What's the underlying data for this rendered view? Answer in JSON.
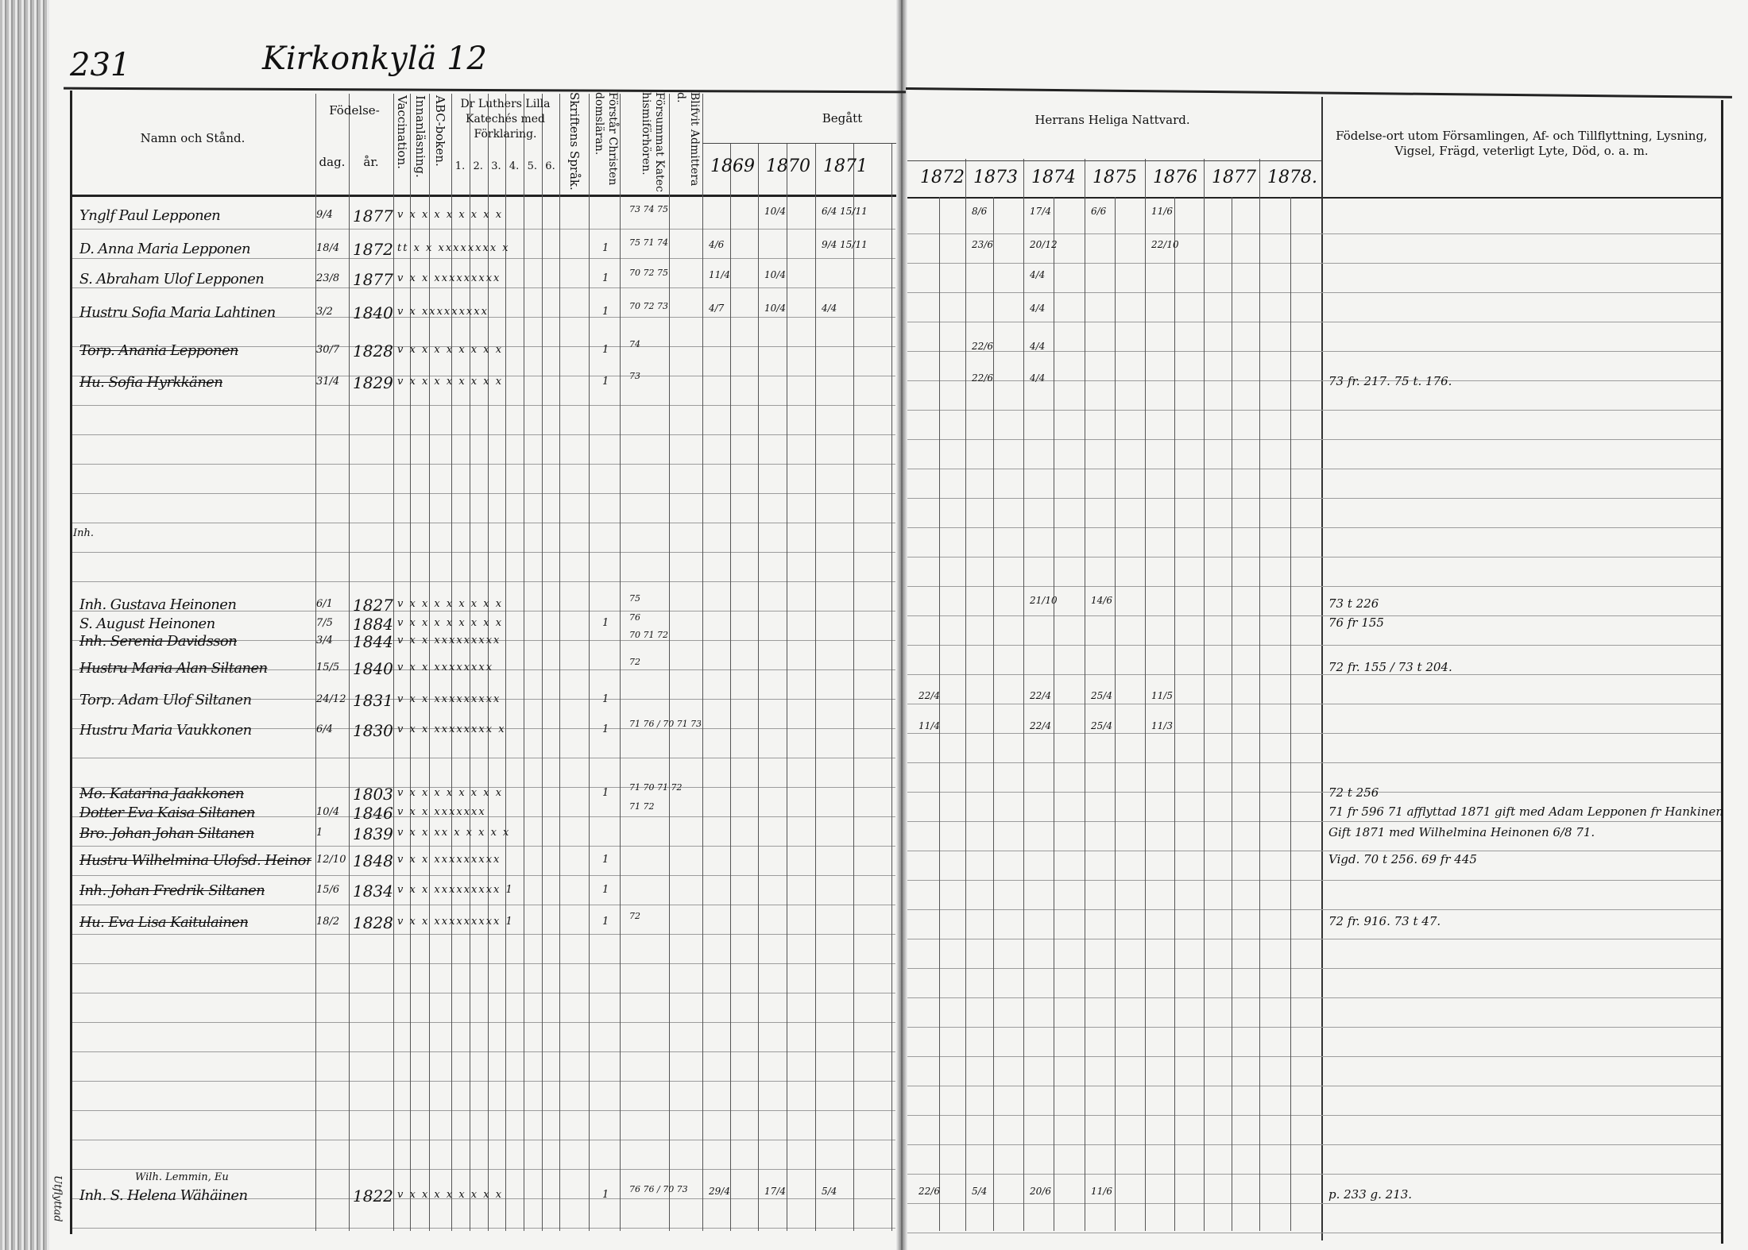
{
  "page_number": "231",
  "village_title": "Kirkonkylä 12",
  "header": {
    "name_col": "Namn och Stånd.",
    "birth": "Födelse-",
    "birth_day": "dag.",
    "birth_year": "år.",
    "vaccination": "Vaccination.",
    "innanlasning": "Innanläsning.",
    "abc": "ABC-boken.",
    "luther": "Dr Luthers Lilla Katechés med Förklaring.",
    "luther_parts": [
      "1.",
      "2.",
      "3.",
      "4.",
      "5.",
      "6."
    ],
    "skriftens": "Skriftens Språk.",
    "forstar": "Förstår Christendomsläran.",
    "forsummat": "Försummat Katechismiförhören.",
    "blifvit": "Blifvit Admitterad.",
    "begatt": "Begått",
    "nattvard": "Herrans Heliga Nattvard.",
    "years": [
      "1869",
      "1870",
      "1871",
      "1872",
      "1873",
      "1874",
      "1875",
      "1876",
      "1877",
      "1878."
    ],
    "notes_col": "Födelse-ort utom Församlingen, Af- och Tillflyttning, Lysning, Vigsel, Frägd, veterligt Lyte, Död, o. a. m."
  },
  "rows": [
    {
      "name": "Ynglf Paul Lepponen",
      "day": "9/4",
      "year": "1877",
      "marks": "v x x x x x x x x",
      "forsummat": "73 74 75",
      "y1870": "10/4",
      "y1871": "6/4 15/11",
      "y1873": "8/6",
      "y1874": "17/4",
      "y1875": "6/6",
      "y1876": "11/6",
      "note": ""
    },
    {
      "name": "D. Anna Maria Lepponen",
      "day": "18/4",
      "year": "1872",
      "marks": "tt x x xxxxxxxx x",
      "blifvit": "1",
      "forsummat": "75 71 74",
      "y1869": "4/6",
      "y1871": "9/4 15/11",
      "y1873": "23/6",
      "y1874": "20/12",
      "y1876": "22/10",
      "note": ""
    },
    {
      "name": "S. Abraham Ulof Lepponen",
      "day": "23/8",
      "year": "1877",
      "marks": "v x x xxxxxxxxx",
      "blifvit": "1",
      "forsummat": "70 72 75",
      "y1869": "11/4",
      "y1870": "10/4",
      "y1874": "4/4",
      "note": ""
    },
    {
      "name": "Hustru Sofia Maria Lahtinen",
      "day": "3/2",
      "year": "1840",
      "marks": "v x xxxxxxxxx",
      "blifvit": "1",
      "forsummat": "70 72 73",
      "y1869": "4/7",
      "y1870": "10/4",
      "y1871": "4/4",
      "y1874": "4/4",
      "note": ""
    },
    {
      "name": "Torp. Anania Lepponen",
      "day": "30/7",
      "year": "1828",
      "marks": "v x x x x x x x x",
      "blifvit": "1",
      "forsummat": "74",
      "y1873": "22/6",
      "y1874": "4/4",
      "note": "",
      "struck": true
    },
    {
      "name": "Hu. Sofia Hyrkkänen",
      "day": "31/4",
      "year": "1829",
      "marks": "v x x x x x x x x",
      "blifvit": "1",
      "forsummat": "73",
      "y1873": "22/6",
      "y1874": "4/4",
      "note": "73 fr. 217. 75 t. 176.",
      "struck": true
    },
    {
      "name": "Inh. Gustava Heinonen",
      "day": "6/1",
      "year": "1827",
      "marks": "v x x x x x x x x",
      "forsummat": "75",
      "y1874": "21/10",
      "y1875": "14/6",
      "note": "73 t 226",
      "struck": false
    },
    {
      "name": "S. August Heinonen",
      "day": "7/5",
      "year": "1884",
      "marks": "v x x x x x x x x",
      "blifvit": "1",
      "forsummat": "76",
      "note": "76 fr 155"
    },
    {
      "name": "Inh. Serenia Davidsson",
      "day": "3/4",
      "year": "1844",
      "marks": "v x x xxxxxxxxx",
      "forsummat": "70 71 72",
      "note": "",
      "struck": true
    },
    {
      "name": "Hustru Maria Alan Siltanen",
      "day": "15/5",
      "year": "1840",
      "marks": "v x x xxxxxxxx",
      "forsummat": "72",
      "note": "72 fr. 155 / 73 t 204.",
      "struck": true
    },
    {
      "name": "Torp. Adam Ulof Siltanen",
      "day": "24/12",
      "year": "1831",
      "marks": "v x x xxxxxxxxx",
      "blifvit": "1",
      "y1872": "22/4",
      "y1874": "22/4",
      "y1875": "25/4",
      "y1876": "11/5",
      "note": ""
    },
    {
      "name": "Hustru Maria Vaukkonen",
      "day": "6/4",
      "year": "1830",
      "marks": "v x x xxxxxxxx x",
      "blifvit": "1",
      "forsummat": "71 76 / 70 71 73",
      "y1872": "11/4",
      "y1874": "22/4",
      "y1875": "25/4",
      "y1876": "11/3",
      "note": ""
    },
    {
      "name": "Mo. Katarina Jaakkonen",
      "day": "",
      "year": "1803",
      "marks": "v x x x x x x x x",
      "blifvit": "1",
      "forsummat": "71 70 71 72",
      "note": "72 t 256",
      "struck": true
    },
    {
      "name": "Dotter Eva Kaisa Siltanen",
      "day": "10/4",
      "year": "1846",
      "marks": "v x x xxxxxxx",
      "forsummat": "71 72",
      "note": "71 fr 596  71 afflyttad 1871 gift med Adam Lepponen fr Hankinen",
      "struck": true
    },
    {
      "name": "Bro. Johan Johan Siltanen",
      "day": "1",
      "year": "1839",
      "marks": "v x x xx x x x x x",
      "note": "Gift 1871 med Wilhelmina Heinonen 6/8 71.",
      "struck": true
    },
    {
      "name": "Hustru Wilhelmina Ulofsd. Heinonen",
      "day": "12/10",
      "year": "1848",
      "marks": "v x x xxxxxxxxx",
      "blifvit": "1",
      "note": "Vigd. 70 t 256. 69 fr 445",
      "struck": true
    },
    {
      "name": "Inh. Johan Fredrik Siltanen",
      "day": "15/6",
      "year": "1834",
      "marks": "v x x xxxxxxxxx 1",
      "blifvit": "1",
      "note": "",
      "struck": true
    },
    {
      "name": "Hu. Eva Lisa Kaitulainen",
      "day": "18/2",
      "year": "1828",
      "marks": "v x x xxxxxxxxx 1",
      "blifvit": "1",
      "forsummat": "72",
      "note": "72 fr. 916. 73 t 47.",
      "struck": true
    },
    {
      "name": "Inh. S. Helena Wähäinen",
      "sub": "Wilh. Lemmin, Eu",
      "day": "",
      "year": "1822",
      "marks": "v x x x x x x x x",
      "blifvit": "1",
      "forsummat": "76 76 / 70 73",
      "y1869": "29/4",
      "y1870": "17/4",
      "y1871": "5/4",
      "y1872": "22/6",
      "y1873": "5/4",
      "y1874": "20/6",
      "y1875": "11/6",
      "note": "p. 233 g. 213."
    }
  ],
  "margin_notes": {
    "left_bottom": "Utflyttad",
    "left_mid": "Inh."
  },
  "colors": {
    "paper": "#f4f4f2",
    "ink": "#111111",
    "rule": "#9c9c9c"
  }
}
